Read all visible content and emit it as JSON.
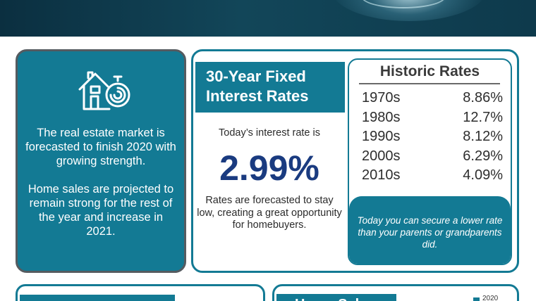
{
  "colors": {
    "teal": "#137a94",
    "navy_rate": "#1a3b80",
    "banner": "#124659",
    "card_border": "#555b60"
  },
  "left_card": {
    "icon": "house-with-timer-icon",
    "paragraph1": "The real estate market is forecasted to finish 2020 with growing strength.",
    "paragraph2": "Home sales are projected to remain strong for the rest of the year and increase in 2021."
  },
  "fixed_rates": {
    "title": "30-Year Fixed Interest Rates",
    "today_label": "Today’s interest rate is",
    "today_rate": "2.99%",
    "forecast_text": "Rates are forecasted to stay low, creating a great opportunity for homebuyers."
  },
  "historic": {
    "title": "Historic Rates",
    "rows": [
      {
        "decade": "1970s",
        "rate": "8.86%"
      },
      {
        "decade": "1980s",
        "rate": "12.7%"
      },
      {
        "decade": "1990s",
        "rate": "8.12%"
      },
      {
        "decade": "2000s",
        "rate": "6.29%"
      },
      {
        "decade": "2010s",
        "rate": "4.09%"
      }
    ],
    "note": "Today you can secure a lower rate than your parents or grandparents did."
  },
  "bottom": {
    "right_title": "Home Sales",
    "legend_label": "2020"
  }
}
